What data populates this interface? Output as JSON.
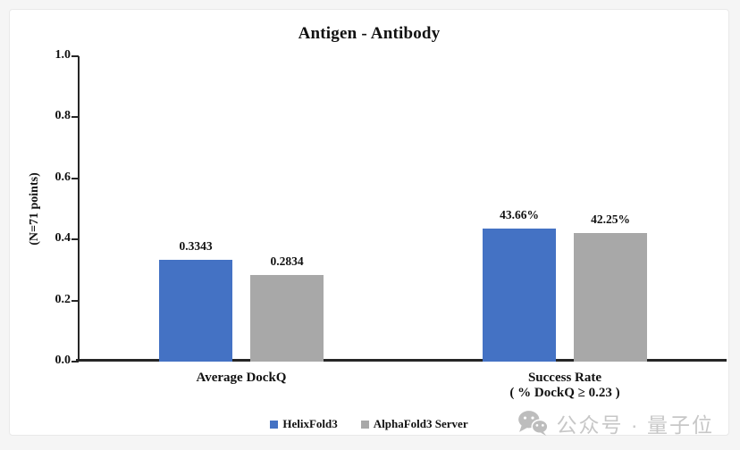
{
  "watermark": {
    "icon": "wechat-icon",
    "text": "公众号 · 量子位"
  },
  "chart_data": {
    "type": "bar",
    "title": "Antigen - Antibody",
    "xlabel": "",
    "ylabel": "(N=71 points)",
    "ylim": [
      0.0,
      1.0
    ],
    "yticks": [
      0.0,
      0.2,
      0.4,
      0.6,
      0.8,
      1.0
    ],
    "ytick_labels": [
      "0.0",
      "0.2",
      "0.4",
      "0.6",
      "0.8",
      "1.0"
    ],
    "grid": false,
    "legend_position": "bottom",
    "categories": [
      "Average DockQ",
      "Success Rate\n( % DockQ ≥ 0.23 )"
    ],
    "series": [
      {
        "name": "HelixFold3",
        "color": "#4472C4",
        "values": [
          0.3343,
          0.4366
        ],
        "value_labels": [
          "0.3343",
          "43.66%"
        ]
      },
      {
        "name": "AlphaFold3 Server",
        "color": "#A8A8A8",
        "values": [
          0.2834,
          0.4225
        ],
        "value_labels": [
          "0.2834",
          "42.25%"
        ]
      }
    ]
  }
}
